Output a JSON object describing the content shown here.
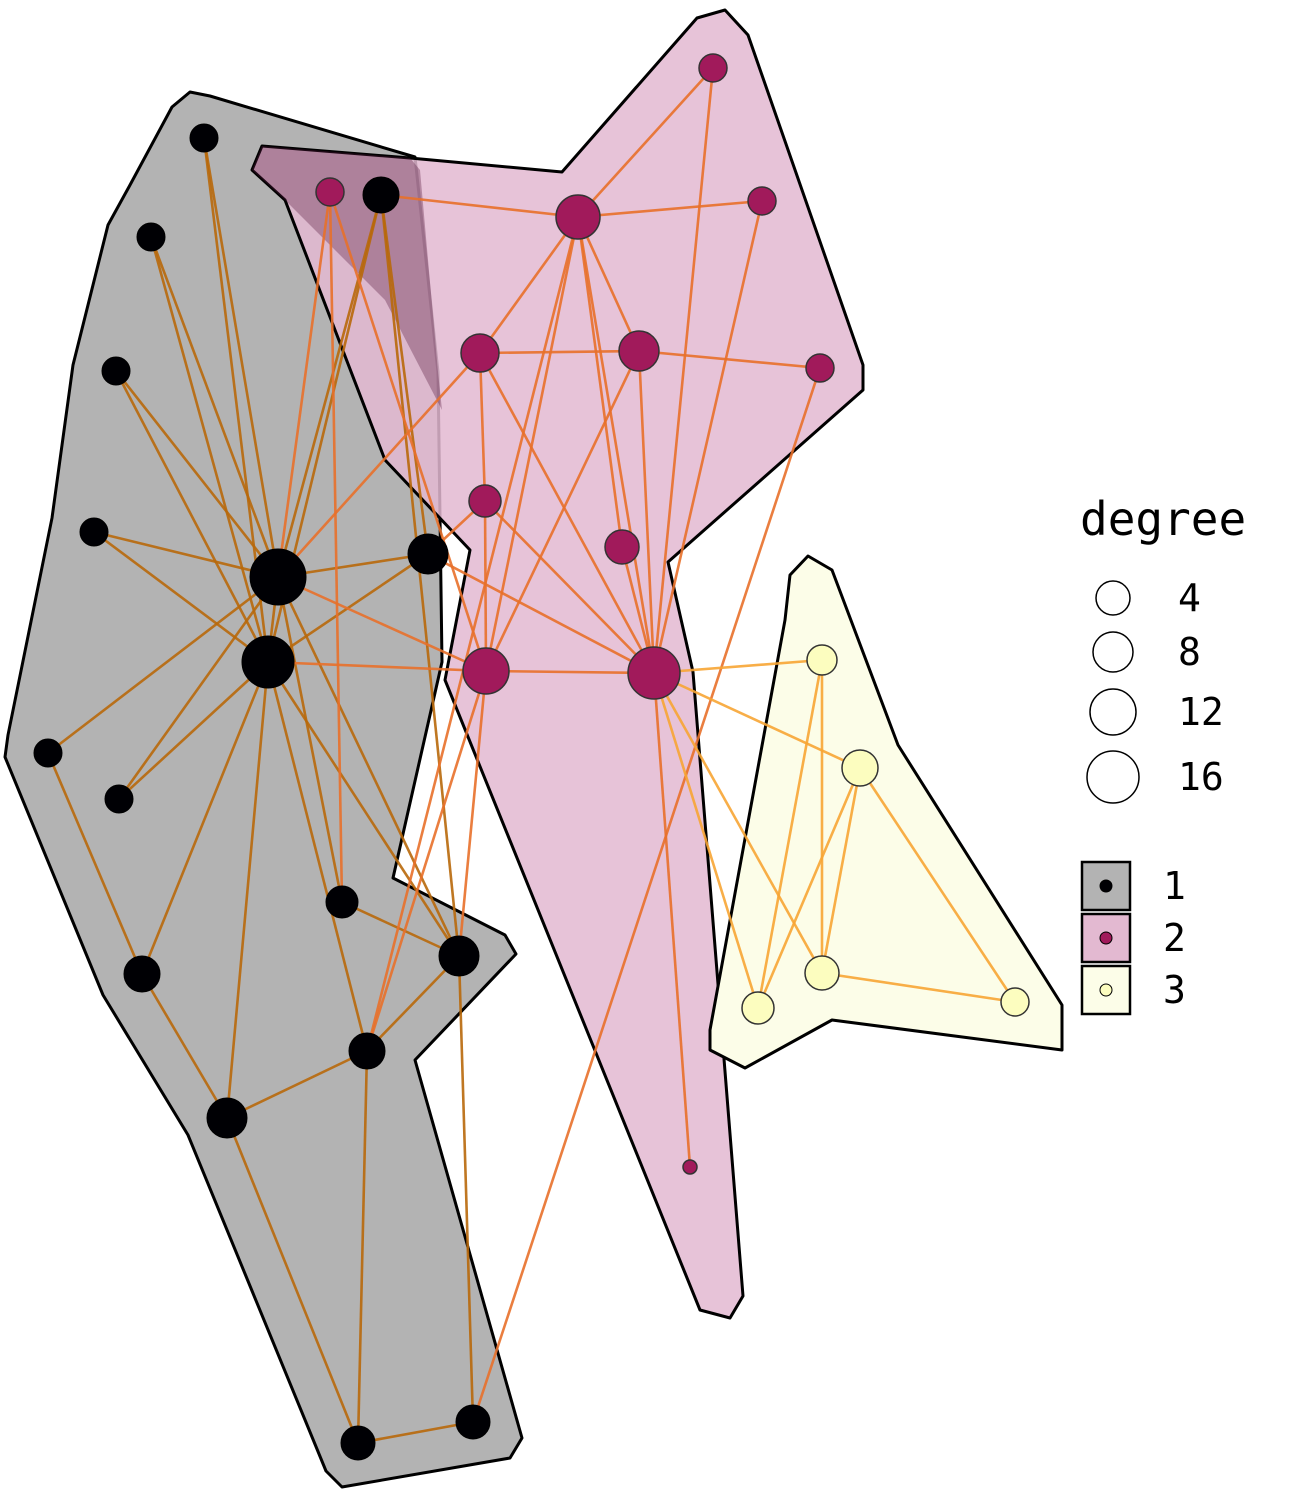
{
  "legend": {
    "size_title": "degree",
    "size_entries": [
      {
        "label": "4",
        "degree": 4
      },
      {
        "label": "8",
        "degree": 8
      },
      {
        "label": "12",
        "degree": 12
      },
      {
        "label": "16",
        "degree": 16
      }
    ],
    "group_entries": [
      {
        "label": "1",
        "group": 1
      },
      {
        "label": "2",
        "group": 2
      },
      {
        "label": "3",
        "group": 3
      }
    ]
  },
  "groups": [
    {
      "id": 1,
      "fill": "#b3b3b3",
      "node_color": "#000004",
      "edge_color": "#b8680a"
    },
    {
      "id": 2,
      "fill": "#e3b9d1",
      "node_color": "#a11a5b",
      "edge_color": "#e8702a"
    },
    {
      "id": 3,
      "fill": "#fcfde8",
      "node_color": "#fcfdbf",
      "edge_color": "#f7a534"
    }
  ]
}
